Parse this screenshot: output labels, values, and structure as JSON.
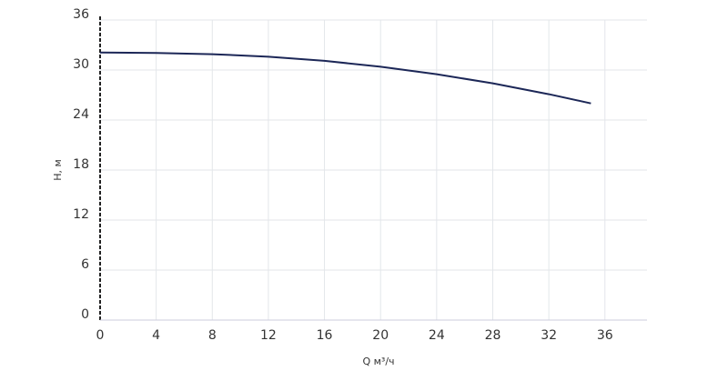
{
  "chart_data": {
    "type": "line",
    "x_label": "Q м³/ч",
    "y_label": "H, м",
    "x": [
      0,
      4,
      8,
      12,
      16,
      20,
      24,
      28,
      32,
      35
    ],
    "series": [
      {
        "color": "#1c2757",
        "values": [
          32.1,
          32.05,
          31.9,
          31.6,
          31.1,
          30.4,
          29.5,
          28.4,
          27.1,
          26.0
        ]
      }
    ],
    "xlim": [
      0,
      39
    ],
    "xticks": [
      0,
      4,
      8,
      12,
      16,
      20,
      24,
      28,
      32,
      36
    ],
    "ylim": [
      0,
      36
    ],
    "yticks": [
      0,
      6,
      12,
      18,
      24,
      30,
      36
    ],
    "grid": true
  }
}
